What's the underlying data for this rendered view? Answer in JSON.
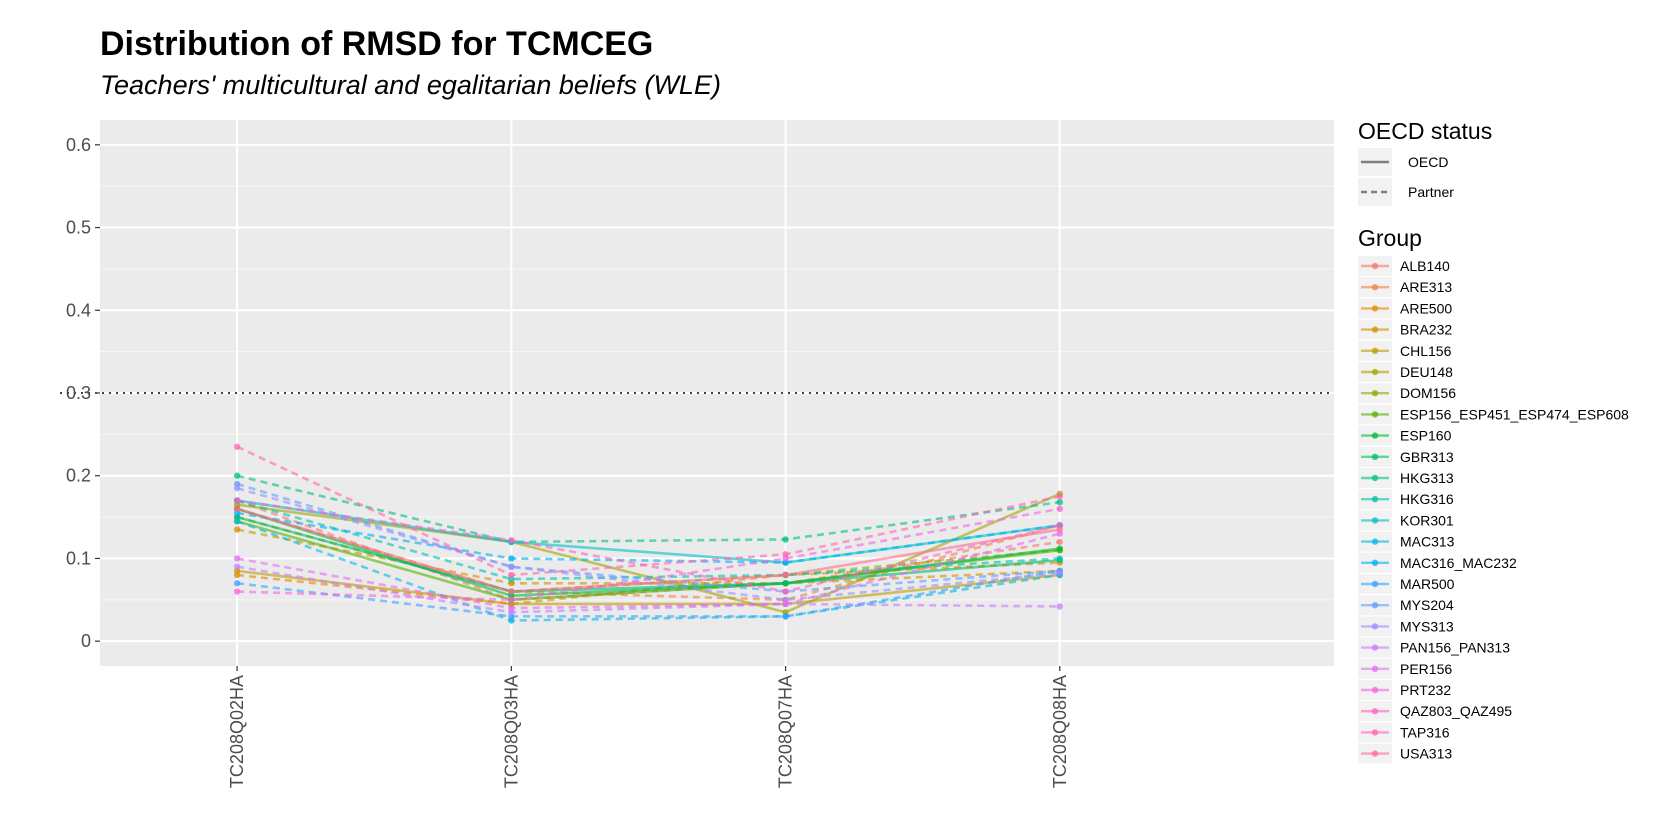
{
  "chart_data": {
    "type": "line",
    "title": "Distribution of RMSD for TCMCEG",
    "subtitle": "Teachers' multicultural and egalitarian beliefs (WLE)",
    "xlabel": "",
    "ylabel": "",
    "categories": [
      "TC208Q02HA",
      "TC208Q03HA",
      "TC208Q07HA",
      "TC208Q08HA"
    ],
    "ylim": [
      -0.03,
      0.63
    ],
    "yticks": [
      0,
      0.1,
      0.2,
      0.3,
      0.4,
      0.5,
      0.6
    ],
    "ytick_labels": [
      "0",
      "0.1",
      "0.2",
      "0.3",
      "0.4",
      "0.5",
      "0.6"
    ],
    "reference_line": 0.3,
    "grid": true,
    "legend_position": "right",
    "linetype_legend": {
      "title": "OECD status",
      "items": [
        {
          "label": "OECD",
          "dash": "solid"
        },
        {
          "label": "Partner",
          "dash": "dashed"
        }
      ]
    },
    "color_legend_title": "Group",
    "series": [
      {
        "name": "ALB140",
        "status": "Partner",
        "color": "#F8766D",
        "values": [
          0.17,
          0.05,
          0.07,
          0.12
        ]
      },
      {
        "name": "ARE313",
        "status": "Partner",
        "color": "#F0814A",
        "values": [
          0.16,
          0.06,
          0.05,
          0.14
        ]
      },
      {
        "name": "ARE500",
        "status": "Partner",
        "color": "#E38900",
        "values": [
          0.08,
          0.045,
          0.08,
          0.095
        ]
      },
      {
        "name": "BRA232",
        "status": "Partner",
        "color": "#D29200",
        "values": [
          0.135,
          0.07,
          0.07,
          0.085
        ]
      },
      {
        "name": "CHL156",
        "status": "OECD",
        "color": "#BE9C00",
        "values": [
          0.085,
          0.045,
          0.045,
          0.08
        ]
      },
      {
        "name": "DEU148",
        "status": "OECD",
        "color": "#A3A500",
        "values": [
          0.165,
          0.12,
          0.035,
          0.178
        ]
      },
      {
        "name": "DOM156",
        "status": "Partner",
        "color": "#84AD00",
        "values": [
          0.15,
          0.06,
          0.08,
          0.11
        ]
      },
      {
        "name": "ESP156_ESP451_ESP474_ESP608",
        "status": "OECD",
        "color": "#53B400",
        "values": [
          0.145,
          0.05,
          0.07,
          0.11
        ]
      },
      {
        "name": "ESP160",
        "status": "OECD",
        "color": "#00BA38",
        "values": [
          0.16,
          0.055,
          0.07,
          0.112
        ]
      },
      {
        "name": "GBR313",
        "status": "OECD",
        "color": "#00BE67",
        "values": [
          0.15,
          0.06,
          0.07,
          0.098
        ]
      },
      {
        "name": "HKG313",
        "status": "Partner",
        "color": "#00C08B",
        "values": [
          0.2,
          0.12,
          0.123,
          0.168
        ]
      },
      {
        "name": "HKG316",
        "status": "Partner",
        "color": "#00C1A9",
        "values": [
          0.17,
          0.075,
          0.08,
          0.1
        ]
      },
      {
        "name": "KOR301",
        "status": "OECD",
        "color": "#00BFC4",
        "values": [
          0.17,
          0.12,
          0.095,
          0.14
        ]
      },
      {
        "name": "MAC313",
        "status": "Partner",
        "color": "#00B9E3",
        "values": [
          0.145,
          0.025,
          0.03,
          0.08
        ]
      },
      {
        "name": "MAC316_MAC232",
        "status": "Partner",
        "color": "#00B0F6",
        "values": [
          0.155,
          0.1,
          0.095,
          0.14
        ]
      },
      {
        "name": "MAR500",
        "status": "Partner",
        "color": "#35A2FF",
        "values": [
          0.07,
          0.03,
          0.03,
          0.085
        ]
      },
      {
        "name": "MYS204",
        "status": "Partner",
        "color": "#619CFF",
        "values": [
          0.19,
          0.09,
          0.06,
          0.085
        ]
      },
      {
        "name": "MYS313",
        "status": "Partner",
        "color": "#9590FF",
        "values": [
          0.185,
          0.09,
          0.05,
          0.082
        ]
      },
      {
        "name": "PAN156_PAN313",
        "status": "Partner",
        "color": "#C77CFF",
        "values": [
          0.09,
          0.035,
          0.045,
          0.042
        ]
      },
      {
        "name": "PER156",
        "status": "Partner",
        "color": "#E76BF3",
        "values": [
          0.1,
          0.04,
          0.045,
          0.13
        ]
      },
      {
        "name": "PRT232",
        "status": "Partner",
        "color": "#F564E3",
        "values": [
          0.06,
          0.05,
          0.1,
          0.16
        ]
      },
      {
        "name": "QAZ803_QAZ495",
        "status": "Partner",
        "color": "#FF61C3",
        "values": [
          0.17,
          0.122,
          0.06,
          0.14
        ]
      },
      {
        "name": "TAP316",
        "status": "Partner",
        "color": "#FF64B0",
        "values": [
          0.235,
          0.08,
          0.105,
          0.175
        ]
      },
      {
        "name": "USA313",
        "status": "OECD",
        "color": "#FF6C91",
        "values": [
          0.16,
          0.06,
          0.08,
          0.135
        ]
      }
    ]
  }
}
